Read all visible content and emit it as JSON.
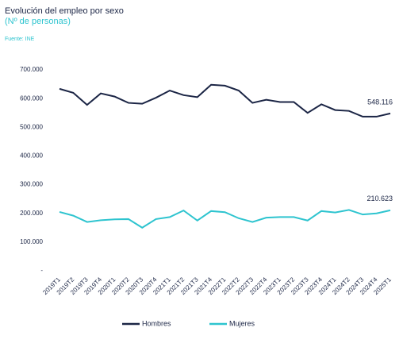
{
  "chart_data": {
    "type": "line",
    "title": "Evolución del empleo por sexo",
    "subtitle": "(Nº de personas)",
    "source": "Fuente: INE",
    "categories": [
      "2019T1",
      "2019T2",
      "2019T3",
      "2019T4",
      "2020T1",
      "2020T2",
      "2020T3",
      "2020T4",
      "2021T1",
      "2021T2",
      "2021T3",
      "2021T4",
      "2022T1",
      "2022T2",
      "2022T3",
      "2022T4",
      "2023T1",
      "2023T2",
      "2023T3",
      "2023T4",
      "2024T1",
      "2024T2",
      "2024T3",
      "2024T4",
      "2025T1"
    ],
    "series": [
      {
        "name": "Hombres",
        "color": "#1b2545",
        "values": [
          634000,
          620000,
          578000,
          618000,
          607000,
          585000,
          582000,
          603000,
          628000,
          612000,
          605000,
          648000,
          645000,
          628000,
          585000,
          596000,
          588000,
          588000,
          550000,
          580000,
          560000,
          557000,
          537000,
          537000,
          548116
        ],
        "value_labels": [
          null,
          null,
          null,
          null,
          null,
          null,
          null,
          null,
          null,
          null,
          null,
          null,
          null,
          null,
          null,
          null,
          null,
          null,
          null,
          null,
          null,
          null,
          null,
          null,
          "548.116"
        ]
      },
      {
        "name": "Mujeres",
        "color": "#2ec4cf",
        "values": [
          205000,
          192000,
          170000,
          176000,
          179000,
          180000,
          150000,
          180000,
          187000,
          210000,
          175000,
          208000,
          204000,
          183000,
          170000,
          185000,
          187000,
          187000,
          175000,
          208000,
          203000,
          212000,
          196000,
          200000,
          210623
        ],
        "value_labels": [
          null,
          null,
          null,
          null,
          null,
          null,
          null,
          null,
          null,
          null,
          null,
          null,
          null,
          null,
          null,
          null,
          null,
          null,
          null,
          null,
          null,
          null,
          null,
          null,
          "210.623"
        ]
      }
    ],
    "ylim": [
      0,
      700000
    ],
    "yticks": [
      {
        "value": 0,
        "label": "-"
      },
      {
        "value": 100000,
        "label": "100.000"
      },
      {
        "value": 200000,
        "label": "200.000"
      },
      {
        "value": 300000,
        "label": "300.000"
      },
      {
        "value": 400000,
        "label": "400.000"
      },
      {
        "value": 500000,
        "label": "500.000"
      },
      {
        "value": 600000,
        "label": "600.000"
      },
      {
        "value": 700000,
        "label": "700.000"
      }
    ],
    "grid": false,
    "legend": "bottom"
  }
}
